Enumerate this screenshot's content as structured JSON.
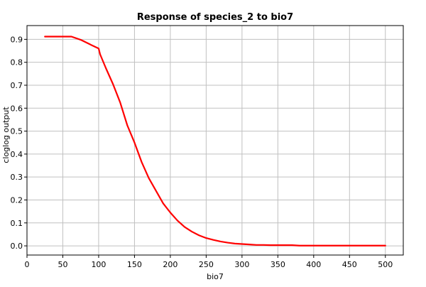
{
  "chart_data": {
    "type": "line",
    "title": "Response of species_2 to bio7",
    "xlabel": "bio7",
    "ylabel": "cloglog output",
    "xlim": [
      0,
      525
    ],
    "ylim": [
      -0.04,
      0.96
    ],
    "xticks": [
      0,
      50,
      100,
      150,
      200,
      250,
      300,
      350,
      400,
      450,
      500
    ],
    "yticks": [
      0.0,
      0.1,
      0.2,
      0.3,
      0.4,
      0.5,
      0.6,
      0.7,
      0.8,
      0.9
    ],
    "ytick_labels": [
      "0.0",
      "0.1",
      "0.2",
      "0.3",
      "0.4",
      "0.5",
      "0.6",
      "0.7",
      "0.8",
      "0.9"
    ],
    "xtick_labels": [
      "0",
      "50",
      "100",
      "150",
      "200",
      "250",
      "300",
      "350",
      "400",
      "450",
      "500"
    ],
    "grid": true,
    "series": [
      {
        "color": "#ff0000",
        "x": [
          25,
          40,
          62,
          75,
          90,
          100,
          102,
          110,
          120,
          130,
          140,
          150,
          160,
          170,
          180,
          190,
          200,
          210,
          220,
          230,
          240,
          250,
          260,
          270,
          280,
          290,
          300,
          310,
          320,
          330,
          340,
          350,
          360,
          370,
          380,
          400,
          450,
          500
        ],
        "y": [
          0.912,
          0.912,
          0.912,
          0.898,
          0.875,
          0.86,
          0.835,
          0.775,
          0.705,
          0.625,
          0.525,
          0.45,
          0.365,
          0.295,
          0.24,
          0.185,
          0.145,
          0.11,
          0.082,
          0.062,
          0.046,
          0.034,
          0.026,
          0.019,
          0.014,
          0.01,
          0.008,
          0.006,
          0.004,
          0.004,
          0.003,
          0.003,
          0.003,
          0.003,
          0.001,
          0.001,
          0.001,
          0.001
        ]
      }
    ]
  }
}
